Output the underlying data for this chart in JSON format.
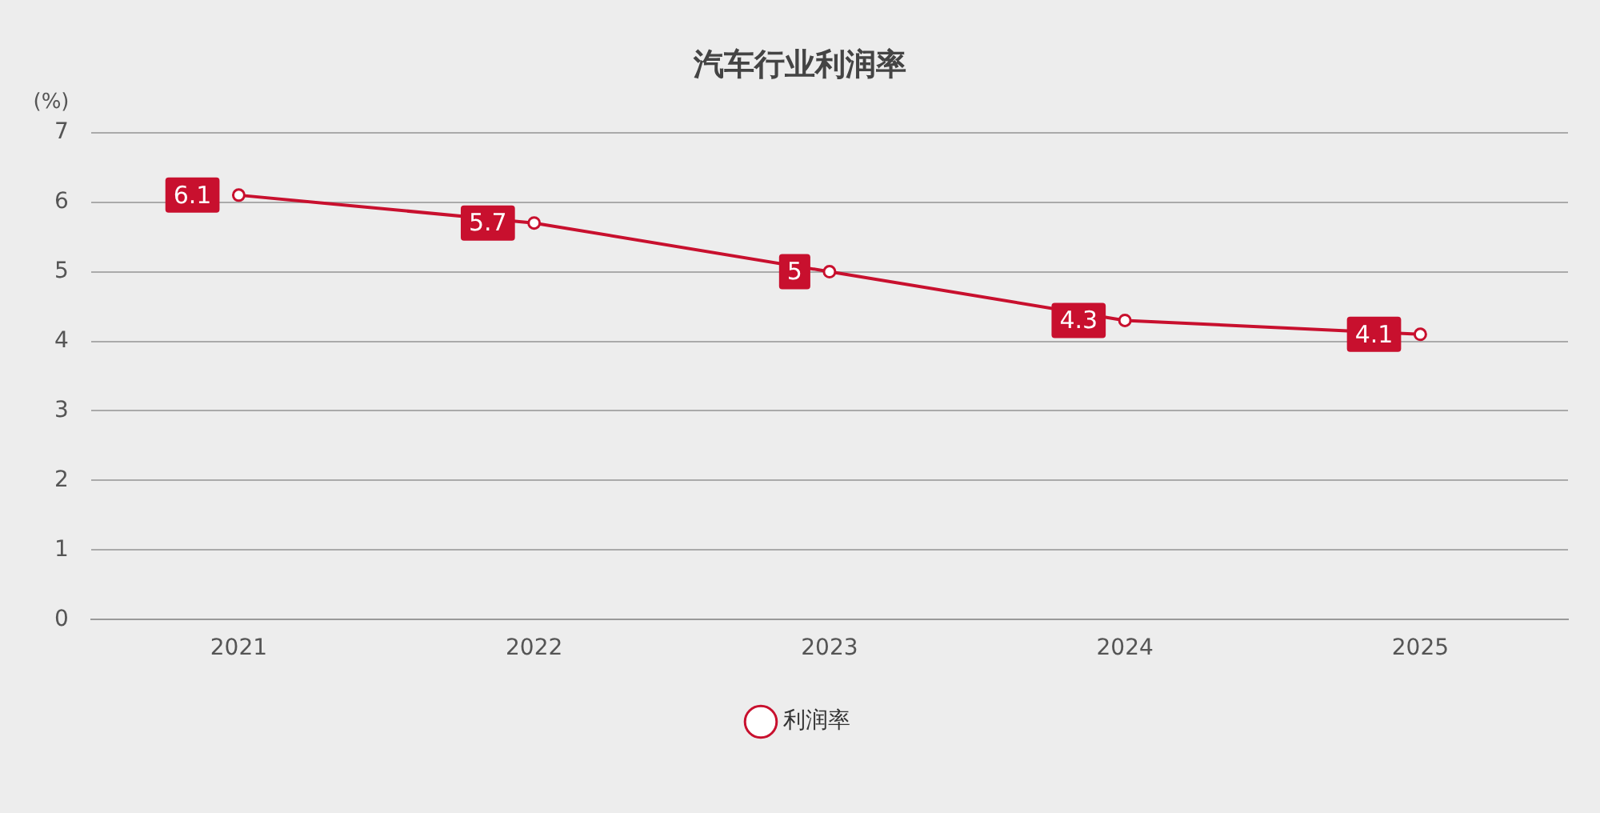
{
  "chart_data": {
    "type": "line",
    "title": "汽车行业利润率",
    "ylabel": "(%)",
    "categories": [
      "2021",
      "2022",
      "2023",
      "2024",
      "2025"
    ],
    "series": [
      {
        "name": "利润率",
        "color": "#c8102e",
        "values": [
          6.1,
          5.7,
          5,
          4.3,
          4.1
        ]
      }
    ],
    "ylim": [
      0,
      7
    ],
    "yticks": [
      0,
      1,
      2,
      3,
      4,
      5,
      6,
      7
    ],
    "grid": "y",
    "legend": "bottom",
    "marker": "circle",
    "line_style": "solid",
    "data_labels": true
  }
}
